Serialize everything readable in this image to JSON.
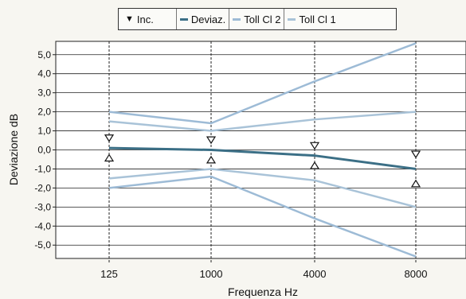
{
  "chart_data": {
    "type": "line",
    "title": "",
    "xlabel": "Frequenza Hz",
    "ylabel": "Deviazione dB",
    "categories": [
      "125",
      "1000",
      "4000",
      "8000"
    ],
    "yticks": [
      "5,0",
      "4,0",
      "3,0",
      "2,0",
      "1,0",
      "0,0",
      "-1,0",
      "-2,0",
      "-3,0",
      "-4,0",
      "-5,0"
    ],
    "ylim": [
      -5.7,
      5.7
    ],
    "grid": true,
    "legend_position": "top",
    "legend": [
      {
        "label": "Inc.",
        "kind": "triangle-marker"
      },
      {
        "label": "Deviaz.",
        "kind": "line"
      },
      {
        "label": "Toll Cl 2",
        "kind": "line"
      },
      {
        "label": "Toll Cl 1",
        "kind": "line"
      }
    ],
    "series": [
      {
        "name": "Deviaz.",
        "values": [
          0.1,
          0.0,
          -0.3,
          -1.0
        ],
        "color": "#3b6f86",
        "width": 3
      },
      {
        "name": "Toll Cl 2",
        "upper": [
          2.0,
          1.4,
          3.6,
          5.6
        ],
        "lower": [
          -2.0,
          -1.4,
          -3.6,
          -5.6
        ],
        "color": "#9dbbd6",
        "width": 2.5
      },
      {
        "name": "Toll Cl 1",
        "upper": [
          1.5,
          1.0,
          1.6,
          2.0
        ],
        "lower": [
          -1.5,
          -1.0,
          -1.6,
          -3.0
        ],
        "color": "#a9c3d8",
        "width": 2.5
      }
    ],
    "uncertainty": {
      "name": "Inc.",
      "values": [
        0.1,
        0.0,
        -0.3,
        -1.0
      ],
      "half_width": [
        0.35,
        0.35,
        0.35,
        0.6
      ]
    }
  },
  "legend_colors": {
    "deviaz": "#3b6f86",
    "toll_cl_2": "#9dbbd6",
    "toll_cl_1": "#a9c3d8"
  }
}
